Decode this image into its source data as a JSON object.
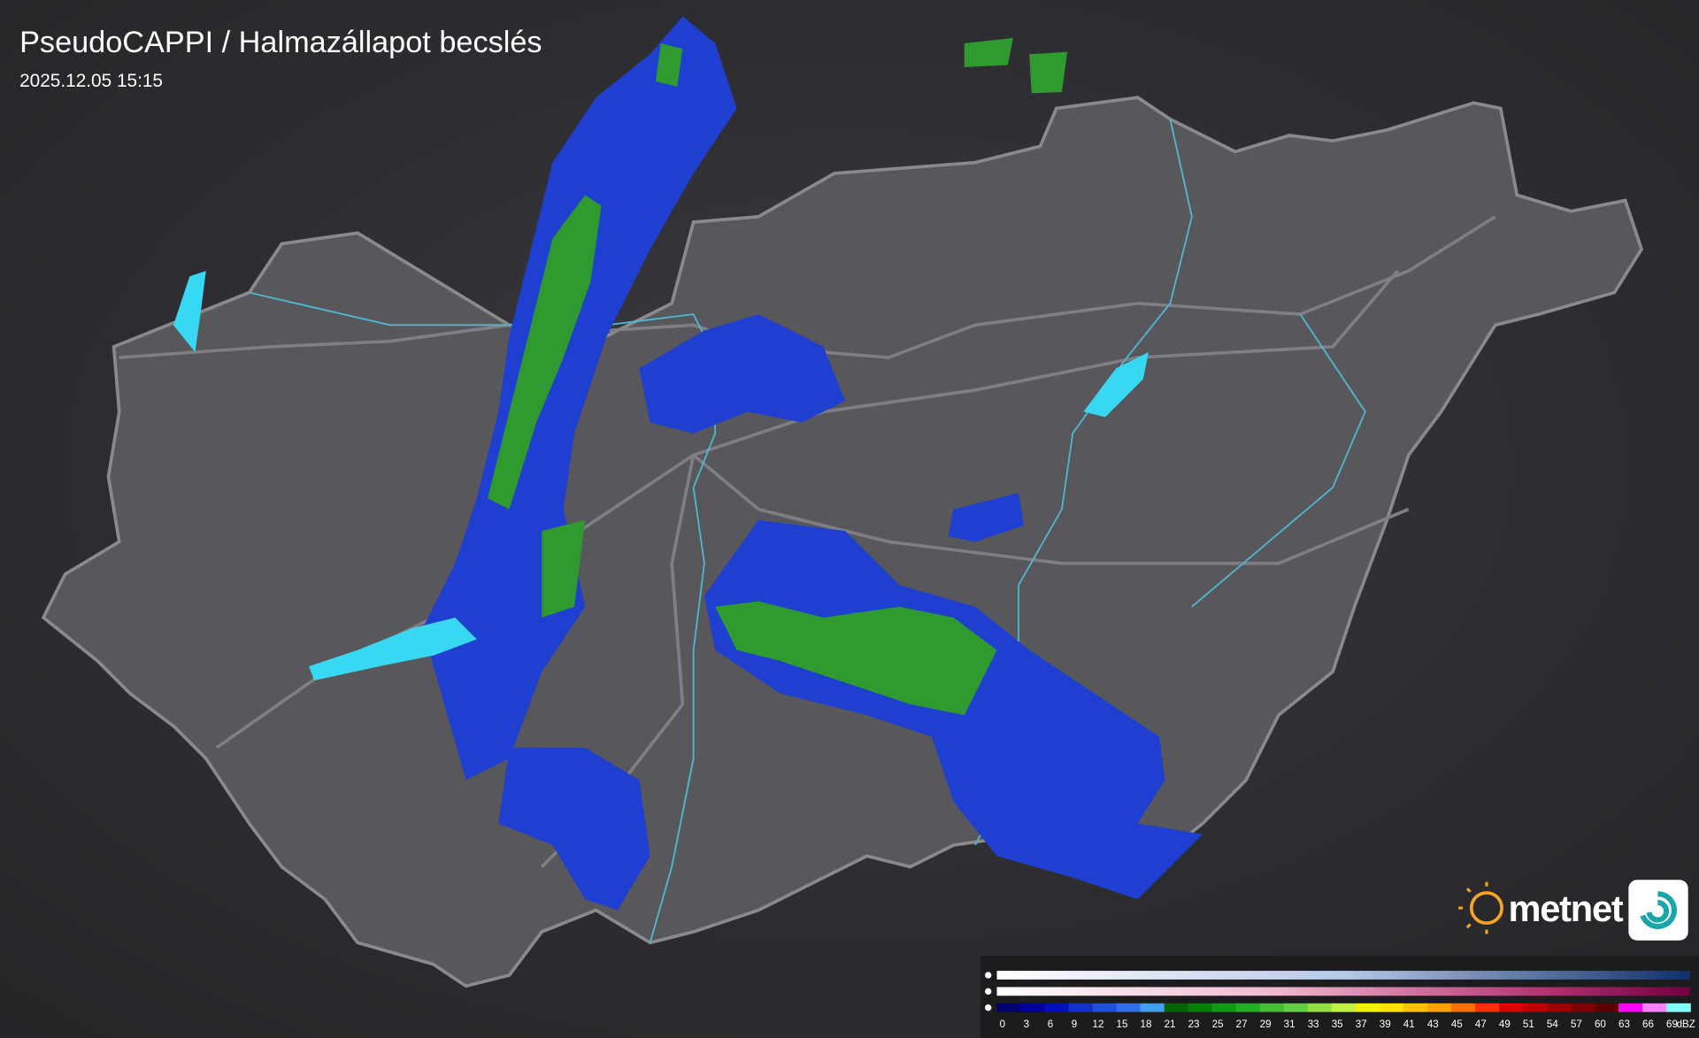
{
  "header": {
    "title": "PseudoCAPPI  / Halmazállapot becslés",
    "timestamp": "2025.12.05 15:15"
  },
  "legend": {
    "ticks": [
      0,
      3,
      6,
      9,
      12,
      15,
      18,
      21,
      23,
      25,
      27,
      29,
      31,
      33,
      35,
      37,
      39,
      41,
      43,
      45,
      47,
      49,
      51,
      54,
      57,
      60,
      63,
      66,
      69
    ],
    "unit": "dBZ",
    "rain_colors": [
      "#000070",
      "#0000a0",
      "#0010c0",
      "#1030d0",
      "#2050e0",
      "#3070f0",
      "#40a0f0",
      "#006400",
      "#008000",
      "#109a10",
      "#20b020",
      "#40c030",
      "#60d040",
      "#90e040",
      "#c0f040",
      "#f0f000",
      "#ffe000",
      "#ffc000",
      "#ffa000",
      "#ff7000",
      "#ff3000",
      "#e00000",
      "#c00000",
      "#a00000",
      "#800000",
      "#600000",
      "#ff00ff",
      "#ff80ff",
      "#80ffff"
    ]
  },
  "logo": {
    "text": "metnet"
  }
}
